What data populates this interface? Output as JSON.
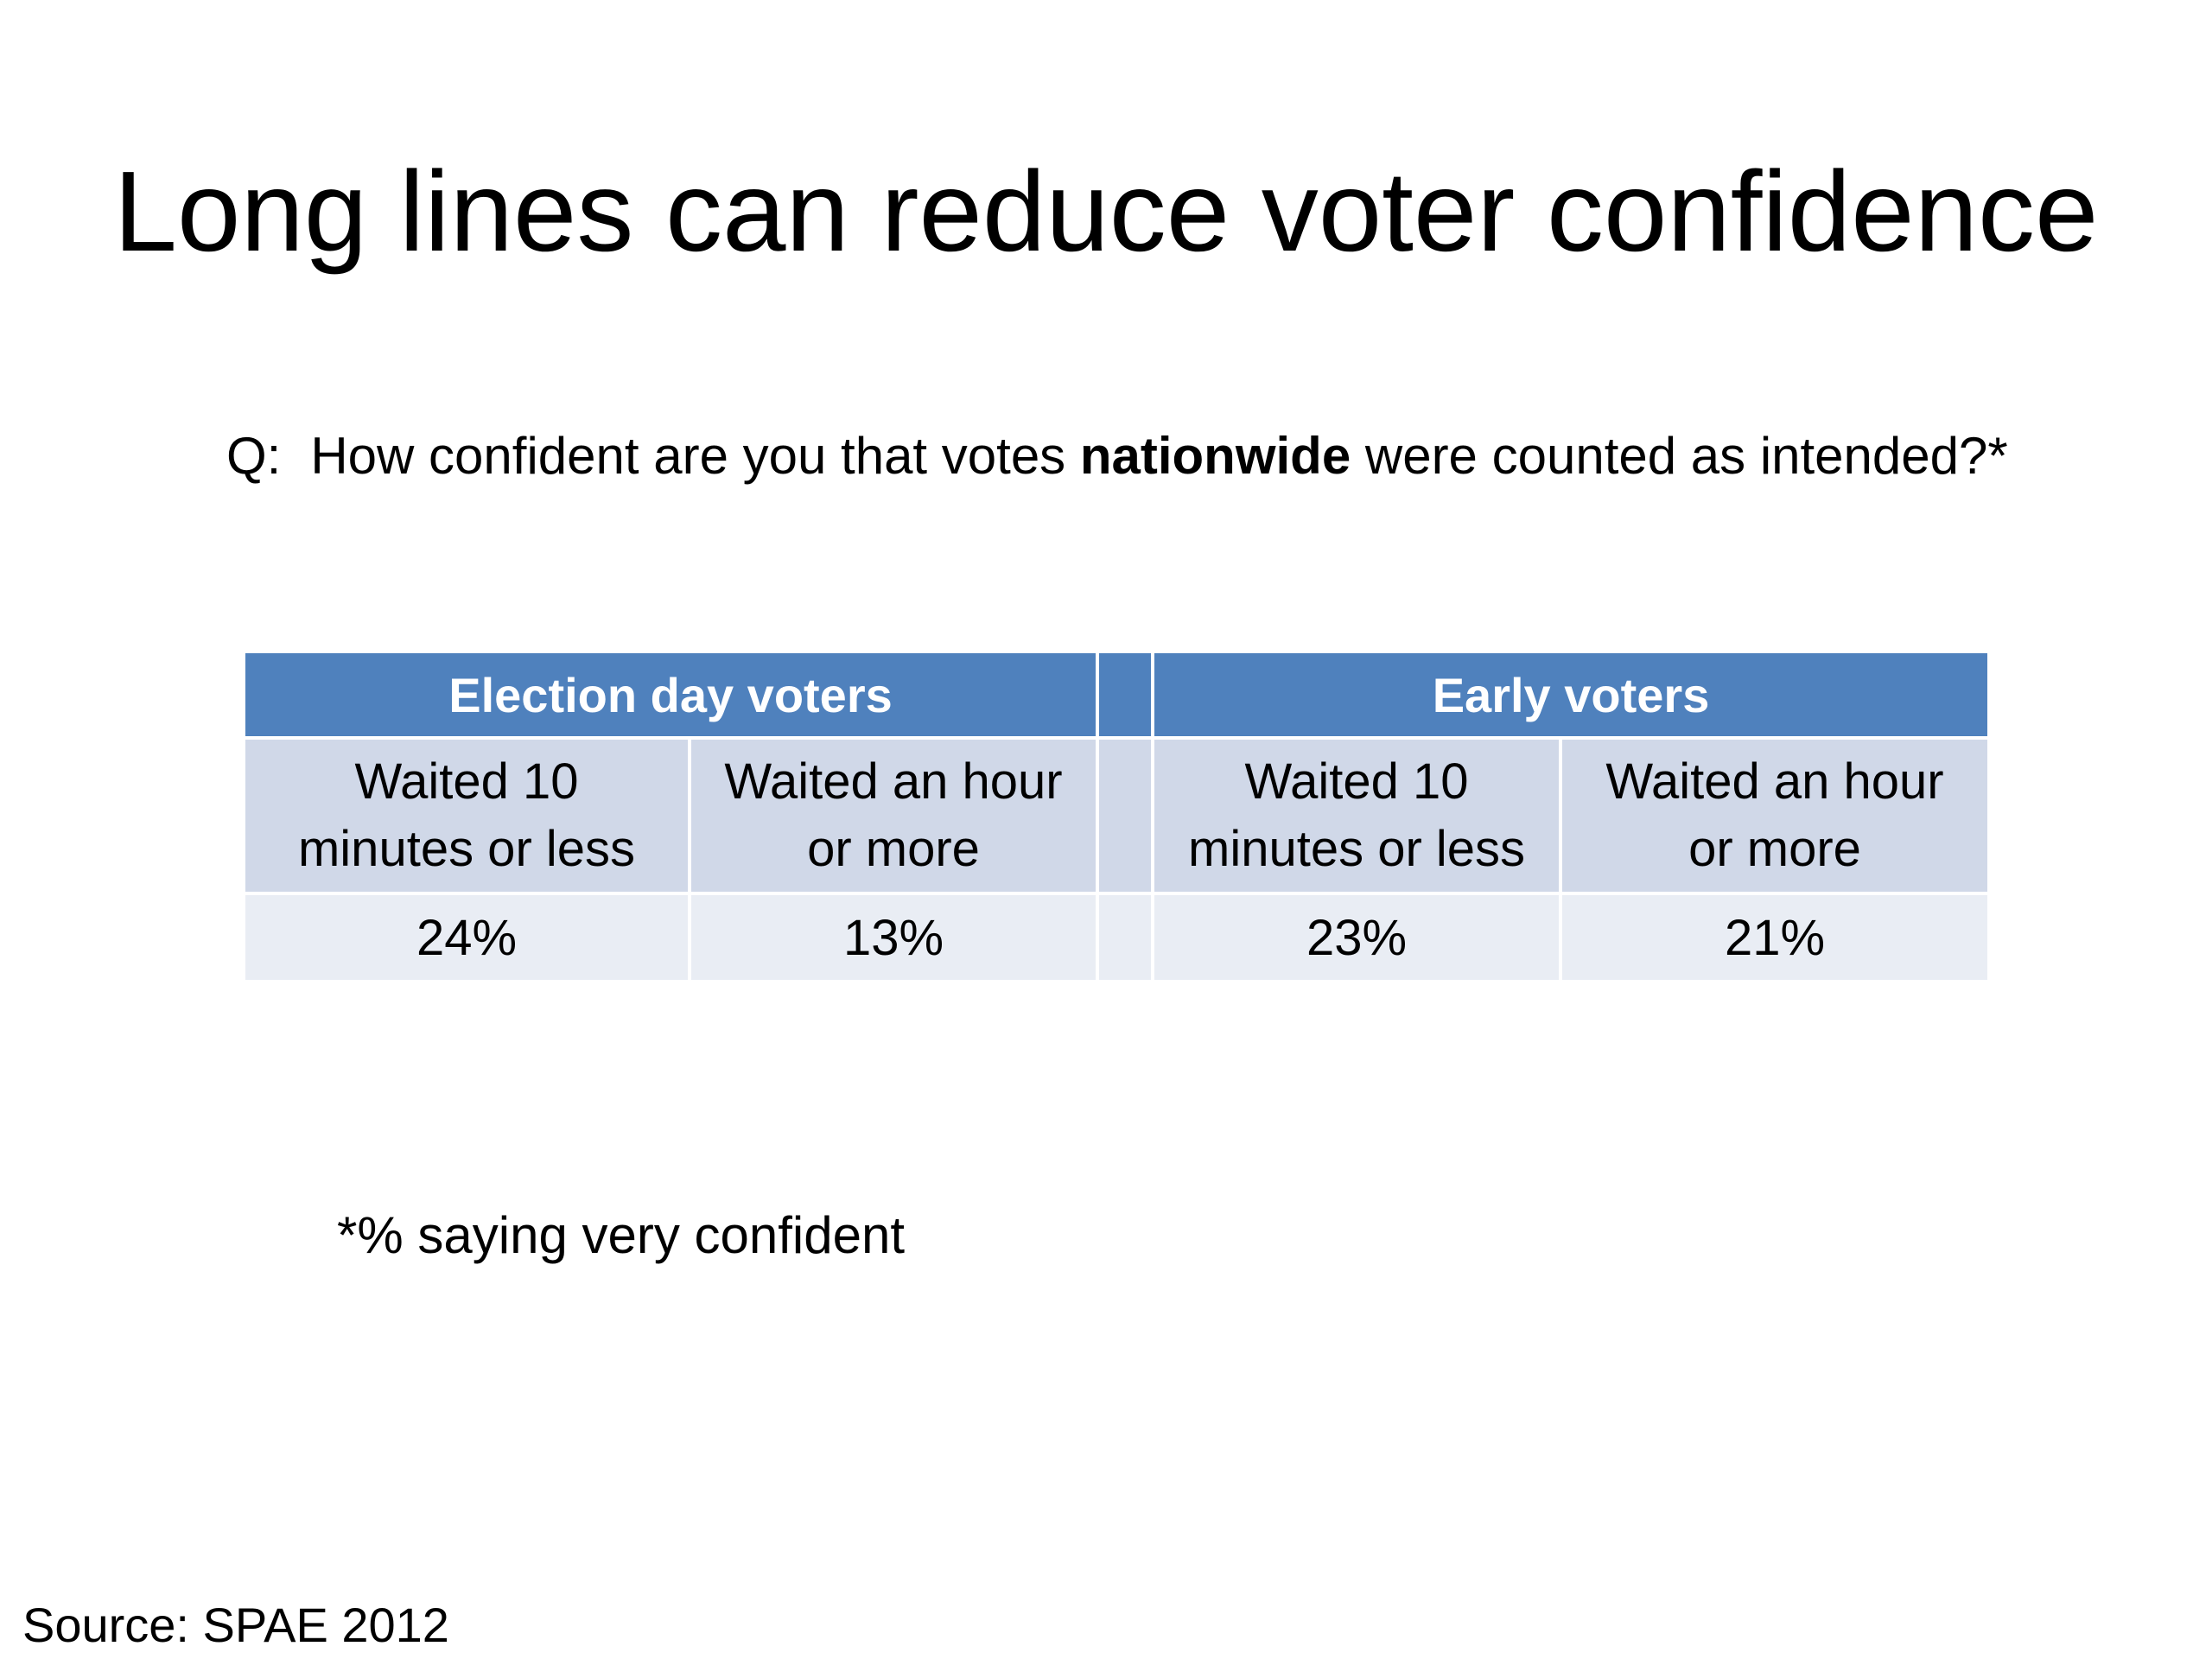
{
  "title": "Long lines can reduce voter confidence",
  "question": {
    "prefix": "Q:",
    "before": "How confident are you that votes ",
    "emphasis": "nationwide",
    "after": " were counted as intended?*"
  },
  "table": {
    "groups": [
      {
        "label": "Election day voters",
        "columns": [
          {
            "line1": "Waited 10",
            "line2": "minutes or less",
            "value": "24%"
          },
          {
            "line1": "Waited an hour",
            "line2": "or more",
            "value": "13%"
          }
        ]
      },
      {
        "label": "Early voters",
        "columns": [
          {
            "line1": "Waited 10",
            "line2": "minutes or less",
            "value": "23%"
          },
          {
            "line1": "Waited an hour",
            "line2": "or more",
            "value": "21%"
          }
        ]
      }
    ]
  },
  "footnote": "*% saying very confident",
  "source": "Source:  SPAE 2012",
  "colors": {
    "header_blue": "#4f81bd",
    "row_light": "#d0d8e8",
    "row_lighter": "#e9edf4"
  }
}
